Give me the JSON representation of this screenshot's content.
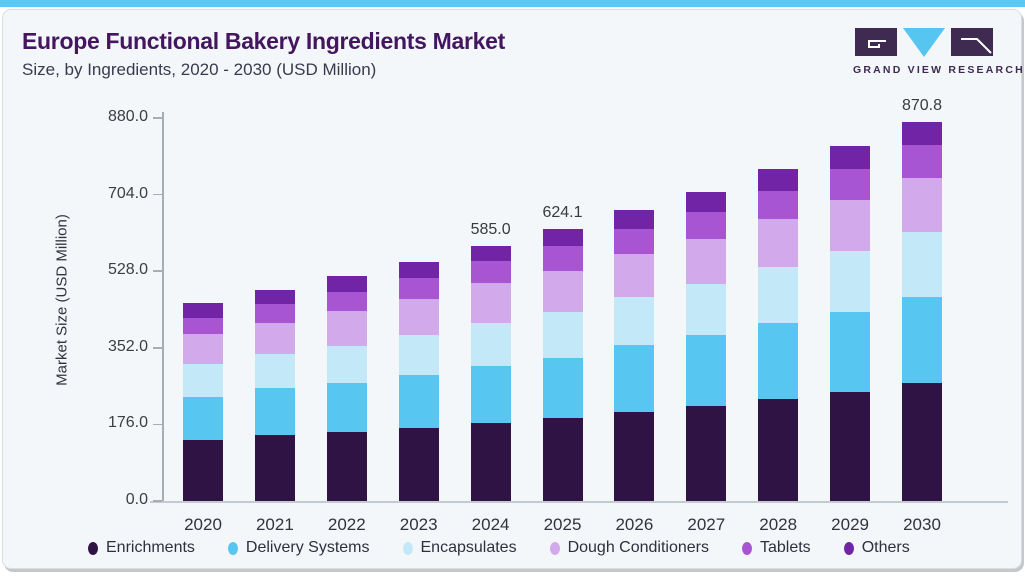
{
  "header": {
    "title": "Europe Functional Bakery Ingredients Market",
    "subtitle": "Size, by Ingredients, 2020 - 2030 (USD Million)",
    "logo_text": "GRAND VIEW RESEARCH"
  },
  "colors": {
    "top_accent_bar": "#5ac8f5",
    "card_background": "#f3f7fa",
    "title_text": "#43165f",
    "subtitle_text": "#3a3a4e",
    "axis_line": "#a8adb4",
    "tick_text": "#3d3d42",
    "logo_purple": "#3f2a52",
    "logo_blue": "#56c5f0"
  },
  "chart_data": {
    "type": "bar",
    "stacked": true,
    "title": "Europe Functional Bakery Ingredients Market Size, by Ingredients, 2020 - 2030 (USD Million)",
    "xlabel": "",
    "ylabel": "Market Size (USD Million)",
    "categories": [
      "2020",
      "2021",
      "2022",
      "2023",
      "2024",
      "2025",
      "2026",
      "2027",
      "2028",
      "2029",
      "2030"
    ],
    "ylim": [
      0,
      880
    ],
    "yticks": [
      0,
      176,
      352,
      528,
      704,
      880
    ],
    "ytick_labels": [
      "0.0",
      "176.0",
      "352.0",
      "528.0",
      "704.0",
      "880.0"
    ],
    "grid": false,
    "legend_position": "bottom",
    "series": [
      {
        "name": "Enrichments",
        "color": "#2f1345",
        "values": [
          140,
          151,
          159,
          168,
          179,
          190,
          205,
          218,
          234,
          250,
          270.8
        ]
      },
      {
        "name": "Delivery Systems",
        "color": "#57c7f2",
        "values": [
          99,
          108,
          113,
          122,
          131,
          138,
          154,
          163,
          175,
          184,
          198
        ]
      },
      {
        "name": "Encapsulates",
        "color": "#c3e9f9",
        "values": [
          76,
          78,
          85,
          92,
          99,
          106,
          110,
          117,
          129,
          140,
          149
        ]
      },
      {
        "name": "Dough Conditioners",
        "color": "#d2a9ea",
        "values": [
          69,
          71,
          80,
          83,
          92,
          94,
          99,
          103,
          110,
          117,
          124
        ]
      },
      {
        "name": "Tablets",
        "color": "#a855d4",
        "values": [
          37,
          44,
          44,
          48,
          50,
          57,
          57,
          64,
          64,
          71,
          76
        ]
      },
      {
        "name": "Others",
        "color": "#7125a6",
        "values": [
          35,
          33,
          37,
          37,
          34,
          39.1,
          44,
          46,
          51,
          53,
          53
        ]
      }
    ],
    "totals": [
      456,
      485,
      518,
      550,
      585.0,
      624.1,
      669,
      711,
      763,
      815,
      870.8
    ],
    "total_labels": {
      "2024": "585.0",
      "2025": "624.1",
      "2030": "870.8"
    }
  }
}
